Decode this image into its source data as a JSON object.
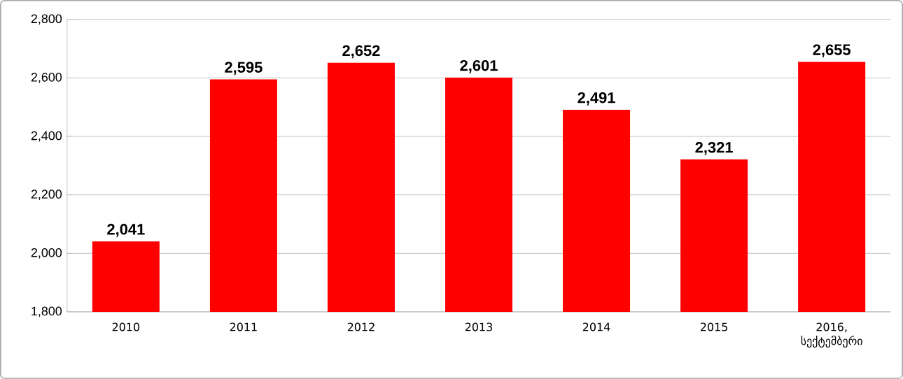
{
  "chart_data": {
    "type": "bar",
    "categories": [
      "2010",
      "2011",
      "2012",
      "2013",
      "2014",
      "2015",
      "2016, სექტემბერი"
    ],
    "values": [
      2041,
      2595,
      2652,
      2601,
      2491,
      2321,
      2655
    ],
    "value_labels": [
      "2,041",
      "2,595",
      "2,652",
      "2,601",
      "2,491",
      "2,321",
      "2,655"
    ],
    "color": "#ff0000",
    "ylim": [
      1800,
      2800
    ],
    "yticks": [
      {
        "value": 1800,
        "label": "1,800"
      },
      {
        "value": 2000,
        "label": "2,000"
      },
      {
        "value": 2200,
        "label": "2,200"
      },
      {
        "value": 2400,
        "label": "2,400"
      },
      {
        "value": 2600,
        "label": "2,600"
      },
      {
        "value": 2800,
        "label": "2,800"
      }
    ],
    "grid": "y"
  }
}
